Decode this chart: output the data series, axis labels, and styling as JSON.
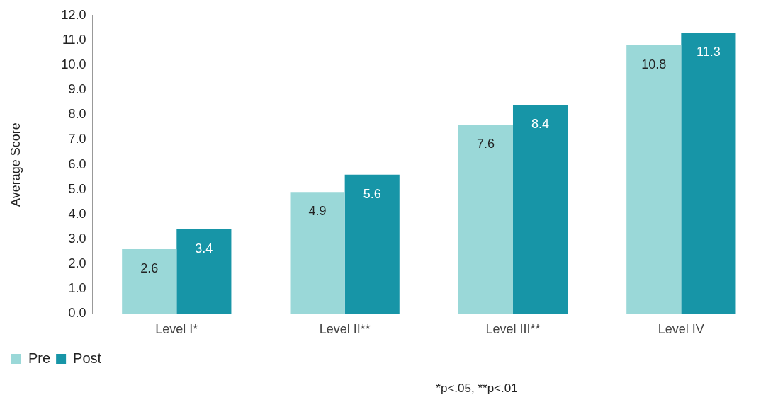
{
  "chart_data": {
    "type": "bar",
    "ylabel": "Average Score",
    "categories": [
      "Level I*",
      "Level II**",
      "Level III**",
      "Level IV"
    ],
    "series": [
      {
        "name": "Pre",
        "color": "#9ad8d8",
        "values": [
          2.6,
          4.9,
          7.6,
          10.8
        ]
      },
      {
        "name": "Post",
        "color": "#1795a7",
        "values": [
          3.4,
          5.6,
          8.4,
          11.3
        ]
      }
    ],
    "ylim": [
      0,
      12
    ],
    "yticks": [
      {
        "value": 0,
        "label": "0.0"
      },
      {
        "value": 1,
        "label": "1.0"
      },
      {
        "value": 2,
        "label": "2.0"
      },
      {
        "value": 3,
        "label": "3.0"
      },
      {
        "value": 4,
        "label": "4.0"
      },
      {
        "value": 5,
        "label": "5.0"
      },
      {
        "value": 6,
        "label": "6.0"
      },
      {
        "value": 7,
        "label": "7.0"
      },
      {
        "value": 8,
        "label": "8.0"
      },
      {
        "value": 9,
        "label": "9.0"
      },
      {
        "value": 10,
        "label": "10.0"
      },
      {
        "value": 11,
        "label": "11.0"
      },
      {
        "value": 12,
        "label": "12.0"
      }
    ],
    "data_labels": true,
    "legend": "bottom",
    "grid": false,
    "annotations": [
      "*p<.05, **p<.01"
    ]
  }
}
